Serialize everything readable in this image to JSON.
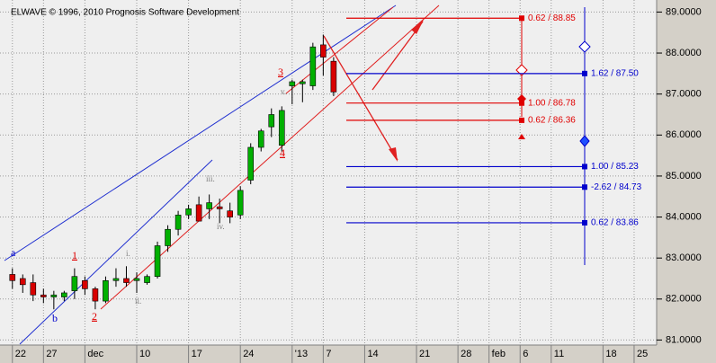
{
  "chart_data": {
    "type": "candlestick",
    "title": "ELWAVE © 1996, 2010 Prognosis Software Development",
    "open": [
      82.6,
      82.5,
      82.4,
      82.1,
      82.05,
      82.05,
      82.2,
      82.45,
      82.25,
      81.95,
      82.45,
      82.5,
      82.45,
      82.4,
      82.55,
      83.3,
      83.7,
      84.05,
      84.3,
      84.2,
      84.25,
      84.15,
      84.05,
      84.9,
      85.7,
      86.2,
      85.75,
      87.2,
      87.25,
      87.2,
      88.2,
      87.8
    ],
    "high": [
      82.75,
      82.6,
      82.6,
      82.25,
      82.2,
      82.2,
      82.75,
      82.55,
      82.3,
      82.55,
      82.75,
      82.8,
      82.65,
      82.6,
      83.4,
      83.8,
      84.15,
      84.3,
      84.5,
      84.55,
      84.45,
      84.35,
      84.75,
      85.8,
      86.15,
      86.65,
      86.7,
      87.35,
      87.35,
      88.25,
      88.45,
      87.9
    ],
    "low": [
      82.25,
      82.15,
      81.95,
      81.9,
      81.75,
      81.95,
      82.0,
      82.1,
      81.75,
      81.9,
      82.3,
      82.3,
      82.15,
      82.35,
      82.5,
      83.15,
      83.55,
      83.95,
      83.9,
      83.95,
      83.85,
      83.85,
      83.95,
      84.8,
      85.6,
      85.95,
      85.6,
      86.75,
      86.8,
      87.1,
      87.45,
      86.95
    ],
    "close": [
      82.45,
      82.35,
      82.1,
      82.05,
      82.1,
      82.15,
      82.55,
      82.25,
      81.95,
      82.45,
      82.5,
      82.4,
      82.5,
      82.55,
      83.3,
      83.7,
      84.05,
      84.2,
      83.9,
      84.35,
      84.2,
      84.0,
      84.65,
      85.7,
      86.1,
      86.5,
      86.6,
      87.3,
      87.3,
      88.15,
      87.9,
      87.05
    ],
    "up_color": "#00b000",
    "down_color": "#d80000",
    "xlim": [
      -0.5,
      62
    ],
    "xticks": [
      {
        "value": 0,
        "label": "22"
      },
      {
        "value": 3,
        "label": "27"
      },
      {
        "value": 7,
        "label": "dec"
      },
      {
        "value": 12,
        "label": "10"
      },
      {
        "value": 17,
        "label": "17"
      },
      {
        "value": 22,
        "label": "24"
      },
      {
        "value": 27,
        "label": "'13"
      },
      {
        "value": 30,
        "label": "7"
      },
      {
        "value": 34,
        "label": "14"
      },
      {
        "value": 39,
        "label": "21"
      },
      {
        "value": 43,
        "label": "28"
      },
      {
        "value": 46,
        "label": "feb"
      },
      {
        "value": 49,
        "label": "6"
      },
      {
        "value": 52,
        "label": "11"
      },
      {
        "value": 57,
        "label": "18"
      },
      {
        "value": 60,
        "label": "25"
      }
    ],
    "ylim": [
      80.9,
      89.25
    ],
    "yticks": [
      {
        "value": 81,
        "label": "81.0000"
      },
      {
        "value": 82,
        "label": "82.0000"
      },
      {
        "value": 83,
        "label": "83.0000"
      },
      {
        "value": 84,
        "label": "84.0000"
      },
      {
        "value": 85,
        "label": "85.0000"
      },
      {
        "value": 86,
        "label": "86.0000"
      },
      {
        "value": 87,
        "label": "87.0000"
      },
      {
        "value": 88,
        "label": "88.0000"
      },
      {
        "value": 89,
        "label": "89.0000"
      }
    ],
    "grid": true,
    "levels": [
      {
        "label": "0.62 / 88.85",
        "value": 88.85,
        "color": "#e00000"
      },
      {
        "label": "1.62 / 87.50",
        "value": 87.5,
        "color": "#0000cc"
      },
      {
        "label": "1.00 / 86.78",
        "value": 86.78,
        "color": "#e00000"
      },
      {
        "label": "0.62 / 86.36",
        "value": 86.36,
        "color": "#e00000"
      },
      {
        "label": "1.00 / 85.23",
        "value": 85.23,
        "color": "#0000cc"
      },
      {
        "label": "-2.62 / 84.73",
        "value": 84.73,
        "color": "#0000cc"
      },
      {
        "label": "0.62 / 83.86",
        "value": 83.86,
        "color": "#0000cc"
      }
    ],
    "annotations": [
      {
        "text": "a",
        "color": "#0000cc"
      },
      {
        "text": "b",
        "color": "#0000cc"
      },
      {
        "text": "1",
        "color": "#e00000"
      },
      {
        "text": "2",
        "color": "#e00000"
      },
      {
        "text": "3",
        "color": "#e00000"
      },
      {
        "text": "4",
        "color": "#e00000"
      },
      {
        "text": "i.",
        "color": "#808080"
      },
      {
        "text": "ii.",
        "color": "#808080"
      },
      {
        "text": "iii.",
        "color": "#808080"
      },
      {
        "text": "iv.",
        "color": "#808080"
      },
      {
        "text": "v.",
        "color": "#808080"
      }
    ]
  }
}
